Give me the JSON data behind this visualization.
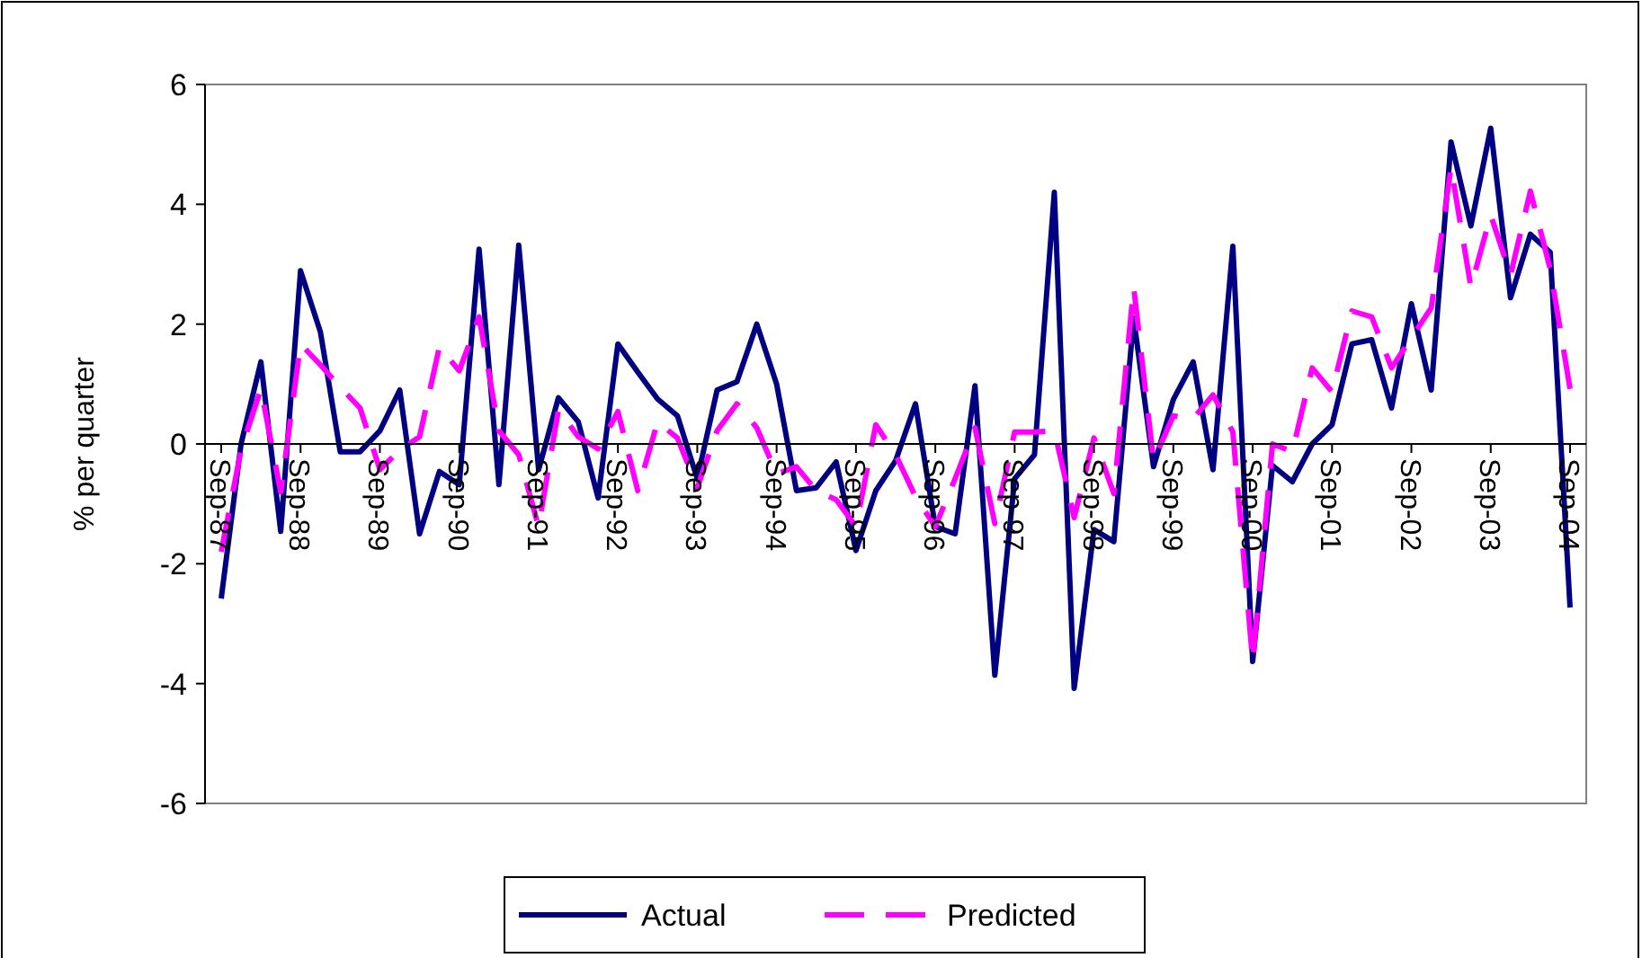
{
  "chart_data": {
    "type": "line",
    "ylabel": "% per quarter",
    "categories": [
      "Sep-87",
      null,
      null,
      null,
      "Sep-88",
      null,
      null,
      null,
      "Sep-89",
      null,
      null,
      null,
      "Sep-90",
      null,
      null,
      null,
      "Sep-91",
      null,
      null,
      null,
      "Sep-92",
      null,
      null,
      null,
      "Sep-93",
      null,
      null,
      null,
      "Sep-94",
      null,
      null,
      null,
      "Sep-95",
      null,
      null,
      null,
      "Sep-96",
      null,
      null,
      null,
      "Sep-97",
      null,
      null,
      null,
      "Sep-98",
      null,
      null,
      null,
      "Sep-99",
      null,
      null,
      null,
      "Sep-00",
      null,
      null,
      null,
      "Sep-01",
      null,
      null,
      null,
      "Sep-02",
      null,
      null,
      null,
      "Sep-03",
      null,
      null,
      null,
      "Sep-04"
    ],
    "series": [
      {
        "name": "Actual",
        "color": "#000080",
        "line_style": "solid",
        "values": [
          -2.58,
          0.0,
          1.37,
          -1.46,
          2.89,
          1.87,
          -0.13,
          -0.13,
          0.22,
          0.9,
          -1.5,
          -0.46,
          -0.68,
          3.25,
          -0.68,
          3.32,
          -0.43,
          0.77,
          0.37,
          -0.9,
          1.67,
          1.2,
          0.75,
          0.47,
          -0.58,
          0.9,
          1.04,
          2.0,
          1.0,
          -0.78,
          -0.73,
          -0.3,
          -1.78,
          -0.78,
          -0.28,
          0.67,
          -1.38,
          -1.5,
          0.97,
          -3.86,
          -0.58,
          -0.18,
          4.2,
          -4.08,
          -1.43,
          -1.63,
          2.1,
          -0.38,
          0.74,
          1.37,
          -0.43,
          3.3,
          -3.63,
          -0.36,
          -0.63,
          0.0,
          0.32,
          1.67,
          1.74,
          0.6,
          2.34,
          0.9,
          5.04,
          3.64,
          5.27,
          2.44,
          3.5,
          3.2,
          -2.73
        ]
      },
      {
        "name": "Predicted",
        "color": "#ff00ff",
        "line_style": "dashed",
        "values": [
          -1.8,
          -0.1,
          0.92,
          -0.8,
          1.67,
          1.32,
          0.95,
          0.6,
          -0.43,
          -0.1,
          0.12,
          1.62,
          1.22,
          2.12,
          0.22,
          -0.18,
          -1.38,
          0.57,
          0.12,
          -0.08,
          0.54,
          -0.78,
          0.37,
          0.1,
          -0.73,
          0.22,
          0.67,
          0.27,
          -0.5,
          -0.38,
          -0.78,
          -0.93,
          -1.38,
          0.32,
          -0.18,
          -0.88,
          -1.38,
          -0.58,
          0.27,
          -1.33,
          0.2,
          0.2,
          0.22,
          -1.23,
          0.1,
          -0.83,
          2.62,
          -0.28,
          0.47,
          0.42,
          0.82,
          0.2,
          -3.63,
          0.0,
          -0.13,
          1.27,
          0.87,
          2.22,
          2.12,
          1.27,
          1.77,
          2.27,
          4.62,
          2.62,
          3.82,
          2.82,
          4.22,
          2.92,
          0.92
        ]
      }
    ],
    "ylim": [
      -6,
      6
    ],
    "yticks": [
      -6,
      -4,
      -2,
      0,
      2,
      4,
      6
    ],
    "grid": false,
    "legend": "bottom",
    "marker": "none"
  }
}
